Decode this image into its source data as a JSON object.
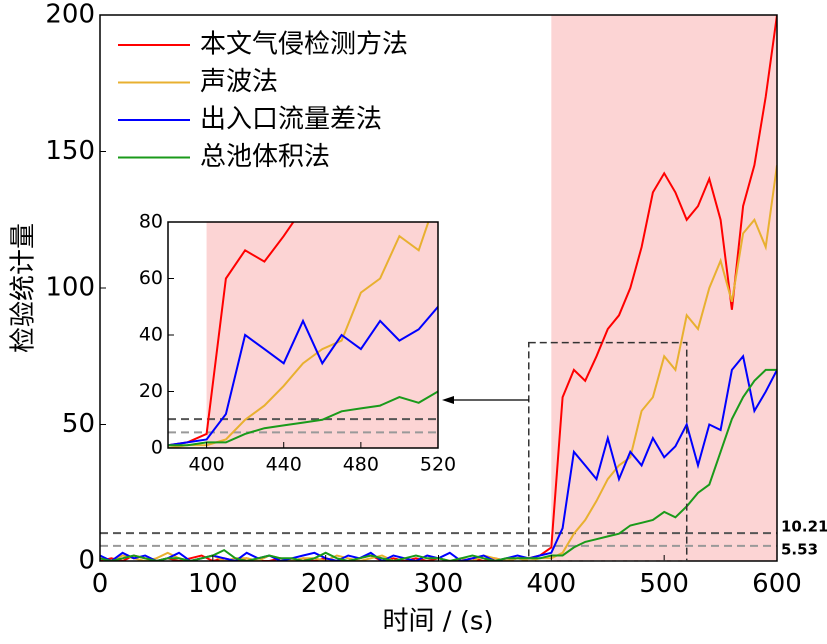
{
  "chart_data": {
    "type": "line",
    "xlabel": "时间 / (s)",
    "ylabel": "检验统计量",
    "x": [
      0,
      10,
      20,
      30,
      40,
      50,
      60,
      70,
      80,
      90,
      100,
      110,
      120,
      130,
      140,
      150,
      160,
      170,
      180,
      190,
      200,
      210,
      220,
      230,
      240,
      250,
      260,
      270,
      280,
      290,
      300,
      310,
      320,
      330,
      340,
      350,
      360,
      370,
      380,
      390,
      400,
      410,
      420,
      430,
      440,
      450,
      460,
      470,
      480,
      490,
      500,
      510,
      520,
      530,
      540,
      550,
      560,
      570,
      580,
      590,
      600
    ],
    "series": [
      {
        "name": "本文气侵检测方法",
        "color": "#ff0000",
        "values": [
          0,
          1,
          0,
          2,
          1,
          0,
          1,
          0,
          1,
          2,
          0,
          1,
          0,
          1,
          0,
          0,
          1,
          0,
          1,
          0,
          1,
          0,
          0,
          1,
          2,
          0,
          1,
          0,
          1,
          0,
          1,
          0,
          0,
          1,
          0,
          1,
          0,
          1,
          1,
          2,
          5,
          60,
          70,
          66,
          75,
          85,
          90,
          100,
          115,
          135,
          142,
          135,
          125,
          130,
          140,
          125,
          92,
          130,
          145,
          170,
          200
        ]
      },
      {
        "name": "声波法",
        "color": "#e8b030",
        "values": [
          1,
          0,
          2,
          1,
          0,
          1,
          3,
          1,
          0,
          1,
          2,
          0,
          1,
          1,
          0,
          2,
          1,
          0,
          1,
          1,
          0,
          2,
          1,
          0,
          1,
          2,
          0,
          1,
          0,
          2,
          1,
          0,
          1,
          0,
          2,
          1,
          0,
          1,
          0,
          1,
          1,
          3,
          10,
          15,
          22,
          30,
          35,
          38,
          55,
          60,
          75,
          70,
          90,
          85,
          100,
          110,
          95,
          120,
          125,
          115,
          145
        ]
      },
      {
        "name": "出入口流量差法",
        "color": "#0000ff",
        "values": [
          2,
          0,
          3,
          1,
          2,
          0,
          1,
          3,
          0,
          1,
          2,
          1,
          0,
          3,
          1,
          2,
          0,
          1,
          2,
          3,
          1,
          0,
          2,
          1,
          3,
          0,
          2,
          1,
          0,
          2,
          1,
          3,
          0,
          1,
          2,
          0,
          1,
          2,
          1,
          2,
          3,
          12,
          40,
          35,
          30,
          45,
          30,
          40,
          35,
          45,
          38,
          42,
          50,
          35,
          50,
          48,
          70,
          75,
          55,
          62,
          70
        ]
      },
      {
        "name": "总池体积法",
        "color": "#1a9a1a",
        "values": [
          1,
          0,
          1,
          2,
          1,
          0,
          1,
          1,
          0,
          1,
          2,
          4,
          1,
          0,
          1,
          2,
          1,
          1,
          0,
          1,
          3,
          1,
          0,
          1,
          2,
          1,
          0,
          1,
          2,
          1,
          1,
          0,
          1,
          2,
          1,
          0,
          1,
          1,
          1,
          1,
          2,
          2,
          5,
          7,
          8,
          9,
          10,
          13,
          14,
          15,
          18,
          16,
          20,
          25,
          28,
          40,
          52,
          60,
          66,
          70,
          70
        ]
      }
    ],
    "xlim": [
      0,
      600
    ],
    "ylim": [
      0,
      200
    ],
    "xticks": [
      0,
      100,
      200,
      300,
      400,
      500,
      600
    ],
    "yticks": [
      0,
      50,
      100,
      150,
      200
    ],
    "highlight_x": [
      400,
      600
    ],
    "highlight_color": "#fcd4d4",
    "thresholds": [
      10.21,
      5.53
    ],
    "threshold_colors": [
      "#555555",
      "#999999"
    ],
    "inset": {
      "xlim": [
        380,
        520
      ],
      "ylim": [
        0,
        80
      ],
      "xticks": [
        400,
        440,
        480,
        520
      ],
      "yticks": [
        0,
        20,
        40,
        60,
        80
      ]
    }
  }
}
